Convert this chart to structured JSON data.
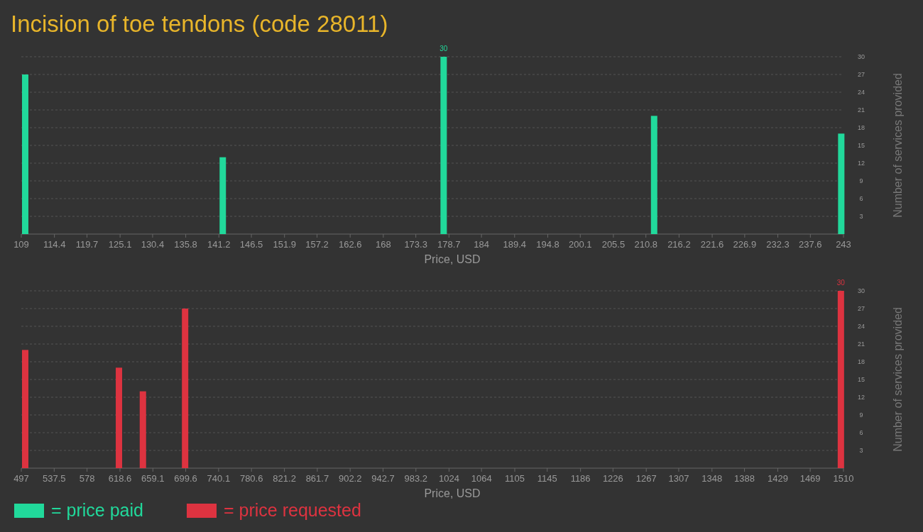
{
  "chart_data": [
    {
      "type": "bar",
      "title": "Incision of toe tendons (code 28011)",
      "xlabel": "Price, USD",
      "ylabel": "Number of services provided",
      "x": [
        109,
        141.2,
        177.2,
        211.5,
        242
      ],
      "series": [
        {
          "name": "= price paid",
          "color": "#21d99b",
          "values": [
            27,
            13,
            30,
            20,
            17
          ],
          "value_labels": [
            null,
            null,
            "30",
            null,
            null
          ]
        }
      ],
      "xlim": [
        109,
        243
      ],
      "xticks": [
        109,
        114.4,
        119.7,
        125.1,
        130.4,
        135.8,
        141.2,
        146.5,
        151.9,
        157.2,
        162.6,
        168,
        173.3,
        178.7,
        184,
        189.4,
        194.8,
        200.1,
        205.5,
        210.8,
        216.2,
        221.6,
        226.9,
        232.3,
        237.6,
        243
      ],
      "ylim": [
        0,
        30
      ],
      "yticks": [
        3,
        6,
        9,
        12,
        15,
        18,
        21,
        24,
        27,
        30
      ],
      "grid": "y",
      "legend": "bottom"
    },
    {
      "type": "bar",
      "xlabel": "Price, USD",
      "ylabel": "Number of services provided",
      "x": [
        497,
        612.5,
        642,
        694,
        1502
      ],
      "series": [
        {
          "name": "= price requested",
          "color": "#dd3340",
          "values": [
            20,
            17,
            13,
            27,
            30
          ],
          "value_labels": [
            null,
            null,
            null,
            null,
            "30"
          ]
        }
      ],
      "xlim": [
        497,
        1510
      ],
      "xticks": [
        497,
        537.5,
        578,
        618.6,
        659.1,
        699.6,
        740.1,
        780.6,
        821.2,
        861.7,
        902.2,
        942.7,
        983.2,
        1024,
        1064,
        1105,
        1145,
        1186,
        1226,
        1267,
        1307,
        1348,
        1388,
        1429,
        1469,
        1510
      ],
      "ylim": [
        0,
        30
      ],
      "yticks": [
        3,
        6,
        9,
        12,
        15,
        18,
        21,
        24,
        27,
        30
      ],
      "grid": "y",
      "legend": "bottom"
    }
  ]
}
